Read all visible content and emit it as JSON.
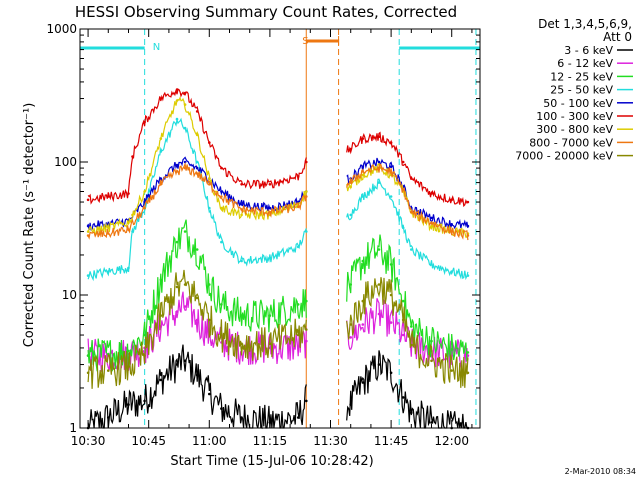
{
  "chart_data": {
    "type": "line",
    "title": "HESSI Observing Summary Count Rates, Corrected",
    "xlabel": "Start Time (15-Jul-06 10:28:42)",
    "ylabel": "Corrected Count Rate (s⁻¹ detector⁻¹)",
    "y_scale": "log",
    "ylim": [
      1,
      1000
    ],
    "xlim": [
      "10:28",
      "12:07"
    ],
    "x_ticks": [
      "10:30",
      "10:45",
      "11:00",
      "11:15",
      "11:30",
      "11:45",
      "12:00"
    ],
    "y_ticks": [
      "1",
      "10",
      "100",
      "1000"
    ],
    "grid": false,
    "legend_placement": "right",
    "legend_header": [
      "Det 1,3,4,5,6,9,",
      "Att 0"
    ],
    "footer_timestamp": "2-Mar-2010 08:34",
    "data_gaps": [
      [
        "11:24",
        "11:34"
      ]
    ],
    "markers": {
      "night_intervals": [
        [
          "10:28",
          "10:44"
        ],
        [
          "11:47",
          "12:07"
        ]
      ],
      "night_label": "N",
      "night_label_time": "10:46",
      "night_lines": [
        "10:44",
        "11:47",
        "12:06"
      ],
      "night_color": "#22dddd",
      "saa_interval": [
        "11:24",
        "11:32"
      ],
      "saa_label": "S",
      "saa_label_time": "11:23",
      "saa_lines": [
        "11:24",
        "11:32"
      ],
      "saa_color": "#ee7711"
    },
    "series": [
      {
        "name": "3 - 6 keV",
        "color": "#000000",
        "x": [
          "10:30",
          "10:35",
          "10:40",
          "10:44",
          "10:48",
          "10:52",
          "10:54",
          "10:57",
          "11:00",
          "11:03",
          "11:08",
          "11:15",
          "11:22",
          "11:24",
          "11:35",
          "11:38",
          "11:42",
          "11:45",
          "11:48",
          "11:50",
          "11:55",
          "12:00",
          "12:04"
        ],
        "values": [
          1.0,
          1.2,
          1.5,
          1.6,
          2.3,
          3.0,
          3.2,
          2.5,
          1.8,
          1.4,
          1.2,
          1.1,
          1.2,
          1.6,
          1.5,
          2.2,
          3.0,
          2.6,
          1.7,
          1.3,
          1.1,
          1.0,
          1.0
        ]
      },
      {
        "name": "6 - 12 keV",
        "color": "#dd22dd",
        "x": [
          "10:30",
          "10:35",
          "10:40",
          "10:44",
          "10:48",
          "10:52",
          "10:54",
          "10:57",
          "11:00",
          "11:03",
          "11:08",
          "11:15",
          "11:22",
          "11:24",
          "11:35",
          "11:38",
          "11:42",
          "11:45",
          "11:48",
          "11:50",
          "11:55",
          "12:00",
          "12:04"
        ],
        "values": [
          3.5,
          3.5,
          3.6,
          4.0,
          5.8,
          7.5,
          8.2,
          6.5,
          5.0,
          4.4,
          4.0,
          4.0,
          4.1,
          4.5,
          4.8,
          6.0,
          7.2,
          6.2,
          5.0,
          4.2,
          3.8,
          3.5,
          3.5
        ]
      },
      {
        "name": "12 - 25 keV",
        "color": "#22dd22",
        "x": [
          "10:30",
          "10:35",
          "10:40",
          "10:44",
          "10:48",
          "10:52",
          "10:54",
          "10:57",
          "11:00",
          "11:03",
          "11:08",
          "11:15",
          "11:22",
          "11:24",
          "11:35",
          "11:38",
          "11:42",
          "11:45",
          "11:48",
          "11:50",
          "11:55",
          "12:00",
          "12:04"
        ],
        "values": [
          3.5,
          3.6,
          3.8,
          5.0,
          13,
          25,
          30,
          22,
          12,
          8.5,
          7.0,
          7.0,
          8.5,
          9.0,
          12,
          18,
          22,
          17,
          9.0,
          5.8,
          4.5,
          3.9,
          3.7
        ]
      },
      {
        "name": "25 - 50 keV",
        "color": "#22dddd",
        "x": [
          "10:30",
          "10:35",
          "10:40",
          "10:41",
          "10:44",
          "10:48",
          "10:52",
          "10:54",
          "10:57",
          "11:00",
          "11:03",
          "11:08",
          "11:15",
          "11:22",
          "11:24",
          "11:35",
          "11:38",
          "11:42",
          "11:45",
          "11:48",
          "11:50",
          "11:55",
          "12:00",
          "12:04"
        ],
        "values": [
          14,
          15,
          16,
          30,
          45,
          120,
          210,
          180,
          100,
          45,
          25,
          18,
          19,
          23,
          30,
          40,
          55,
          70,
          55,
          32,
          22,
          17,
          15,
          14
        ]
      },
      {
        "name": "50 - 100 keV",
        "color": "#0000cc",
        "x": [
          "10:30",
          "10:35",
          "10:40",
          "10:44",
          "10:48",
          "10:52",
          "10:54",
          "10:57",
          "11:00",
          "11:03",
          "11:08",
          "11:15",
          "11:22",
          "11:24",
          "11:35",
          "11:38",
          "11:42",
          "11:45",
          "11:48",
          "11:50",
          "11:55",
          "12:00",
          "12:04"
        ],
        "values": [
          33,
          34,
          36,
          50,
          75,
          95,
          100,
          90,
          75,
          60,
          48,
          45,
          50,
          60,
          75,
          92,
          100,
          92,
          65,
          45,
          38,
          34,
          33
        ]
      },
      {
        "name": "100 - 300 keV",
        "color": "#dd0000",
        "x": [
          "10:30",
          "10:35",
          "10:40",
          "10:41",
          "10:44",
          "10:48",
          "10:52",
          "10:54",
          "10:57",
          "11:00",
          "11:03",
          "11:08",
          "11:15",
          "11:22",
          "11:24",
          "11:35",
          "11:38",
          "11:42",
          "11:45",
          "11:48",
          "11:50",
          "11:55",
          "12:00",
          "12:04"
        ],
        "values": [
          52,
          55,
          58,
          110,
          200,
          300,
          350,
          330,
          240,
          140,
          90,
          68,
          68,
          78,
          100,
          125,
          150,
          155,
          140,
          100,
          75,
          58,
          52,
          50
        ]
      },
      {
        "name": "300 - 800 keV",
        "color": "#ddcc00",
        "x": [
          "10:30",
          "10:35",
          "10:40",
          "10:41",
          "10:44",
          "10:48",
          "10:52",
          "10:54",
          "10:57",
          "11:00",
          "11:03",
          "11:08",
          "11:15",
          "11:22",
          "11:24",
          "11:35",
          "11:38",
          "11:42",
          "11:45",
          "11:48",
          "11:50",
          "11:55",
          "12:00",
          "12:04"
        ],
        "values": [
          30,
          32,
          35,
          40,
          60,
          150,
          290,
          270,
          160,
          75,
          45,
          40,
          40,
          48,
          60,
          65,
          80,
          90,
          80,
          60,
          42,
          33,
          30,
          29
        ]
      },
      {
        "name": "800 - 7000 keV",
        "color": "#ee7711",
        "x": [
          "10:30",
          "10:35",
          "10:40",
          "10:44",
          "10:48",
          "10:52",
          "10:54",
          "10:57",
          "11:00",
          "11:03",
          "11:08",
          "11:15",
          "11:22",
          "11:24",
          "11:35",
          "11:38",
          "11:42",
          "11:45",
          "11:48",
          "11:50",
          "11:55",
          "12:00",
          "12:04"
        ],
        "values": [
          28,
          29,
          31,
          45,
          68,
          85,
          90,
          82,
          68,
          55,
          44,
          42,
          46,
          55,
          70,
          85,
          90,
          85,
          62,
          42,
          35,
          30,
          28
        ]
      },
      {
        "name": "7000 - 20000 keV",
        "color": "#888800",
        "x": [
          "10:30",
          "10:35",
          "10:40",
          "10:44",
          "10:48",
          "10:52",
          "10:54",
          "10:57",
          "11:00",
          "11:03",
          "11:08",
          "11:15",
          "11:22",
          "11:24",
          "11:35",
          "11:38",
          "11:42",
          "11:45",
          "11:48",
          "11:50",
          "11:55",
          "12:00",
          "12:04"
        ],
        "values": [
          2.6,
          2.7,
          2.9,
          3.5,
          7.0,
          11.5,
          12,
          9.5,
          6.5,
          5.0,
          4.3,
          4.3,
          5.0,
          5.5,
          6.0,
          9.0,
          12,
          10,
          6.5,
          4.2,
          3.2,
          2.7,
          2.6
        ]
      }
    ]
  }
}
